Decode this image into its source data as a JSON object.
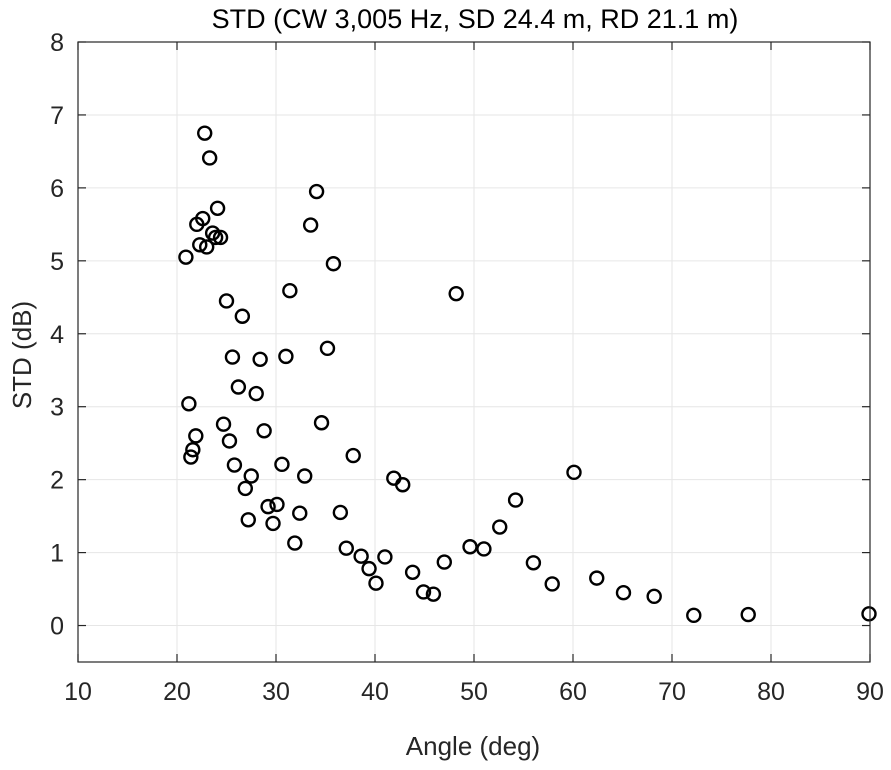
{
  "chart_data": {
    "type": "scatter",
    "title": "STD (CW 3,005 Hz, SD 24.4 m, RD 21.1 m)",
    "xlabel": "Angle (deg)",
    "ylabel": "STD (dB)",
    "xlim": [
      10,
      90
    ],
    "ylim": [
      -0.5,
      8
    ],
    "xticks": [
      10,
      20,
      30,
      40,
      50,
      60,
      70,
      80,
      90
    ],
    "yticks": [
      0,
      1,
      2,
      3,
      4,
      5,
      6,
      7,
      8
    ],
    "grid": true,
    "marker": "open-circle",
    "series": [
      {
        "name": "STD",
        "points": [
          [
            20.9,
            5.05
          ],
          [
            21.2,
            3.04
          ],
          [
            21.4,
            2.31
          ],
          [
            21.6,
            2.41
          ],
          [
            21.9,
            2.6
          ],
          [
            22.0,
            5.5
          ],
          [
            22.3,
            5.22
          ],
          [
            22.6,
            5.58
          ],
          [
            22.8,
            6.75
          ],
          [
            23.0,
            5.19
          ],
          [
            23.3,
            6.41
          ],
          [
            23.6,
            5.38
          ],
          [
            23.9,
            5.32
          ],
          [
            24.1,
            5.72
          ],
          [
            24.4,
            5.32
          ],
          [
            24.7,
            2.76
          ],
          [
            25.0,
            4.45
          ],
          [
            25.3,
            2.53
          ],
          [
            25.6,
            3.68
          ],
          [
            25.8,
            2.2
          ],
          [
            26.2,
            3.27
          ],
          [
            26.6,
            4.24
          ],
          [
            26.9,
            1.88
          ],
          [
            27.2,
            1.45
          ],
          [
            27.5,
            2.05
          ],
          [
            28.0,
            3.18
          ],
          [
            28.4,
            3.65
          ],
          [
            28.8,
            2.67
          ],
          [
            29.2,
            1.63
          ],
          [
            29.7,
            1.4
          ],
          [
            30.1,
            1.66
          ],
          [
            30.6,
            2.21
          ],
          [
            31.0,
            3.69
          ],
          [
            31.4,
            4.59
          ],
          [
            31.9,
            1.13
          ],
          [
            32.4,
            1.54
          ],
          [
            32.9,
            2.05
          ],
          [
            33.5,
            5.49
          ],
          [
            34.1,
            5.95
          ],
          [
            34.6,
            2.78
          ],
          [
            35.2,
            3.8
          ],
          [
            35.8,
            4.96
          ],
          [
            36.5,
            1.55
          ],
          [
            37.1,
            1.06
          ],
          [
            37.8,
            2.33
          ],
          [
            38.6,
            0.95
          ],
          [
            39.4,
            0.78
          ],
          [
            40.1,
            0.58
          ],
          [
            41.0,
            0.94
          ],
          [
            41.9,
            2.02
          ],
          [
            42.8,
            1.93
          ],
          [
            43.8,
            0.73
          ],
          [
            44.9,
            0.46
          ],
          [
            45.9,
            0.43
          ],
          [
            47.0,
            0.87
          ],
          [
            48.2,
            4.55
          ],
          [
            49.6,
            1.08
          ],
          [
            51.0,
            1.05
          ],
          [
            52.6,
            1.35
          ],
          [
            54.2,
            1.72
          ],
          [
            56.0,
            0.86
          ],
          [
            57.9,
            0.57
          ],
          [
            60.1,
            2.1
          ],
          [
            62.4,
            0.65
          ],
          [
            65.1,
            0.45
          ],
          [
            68.2,
            0.4
          ],
          [
            72.2,
            0.14
          ],
          [
            77.7,
            0.15
          ],
          [
            89.9,
            0.16
          ]
        ]
      }
    ]
  }
}
